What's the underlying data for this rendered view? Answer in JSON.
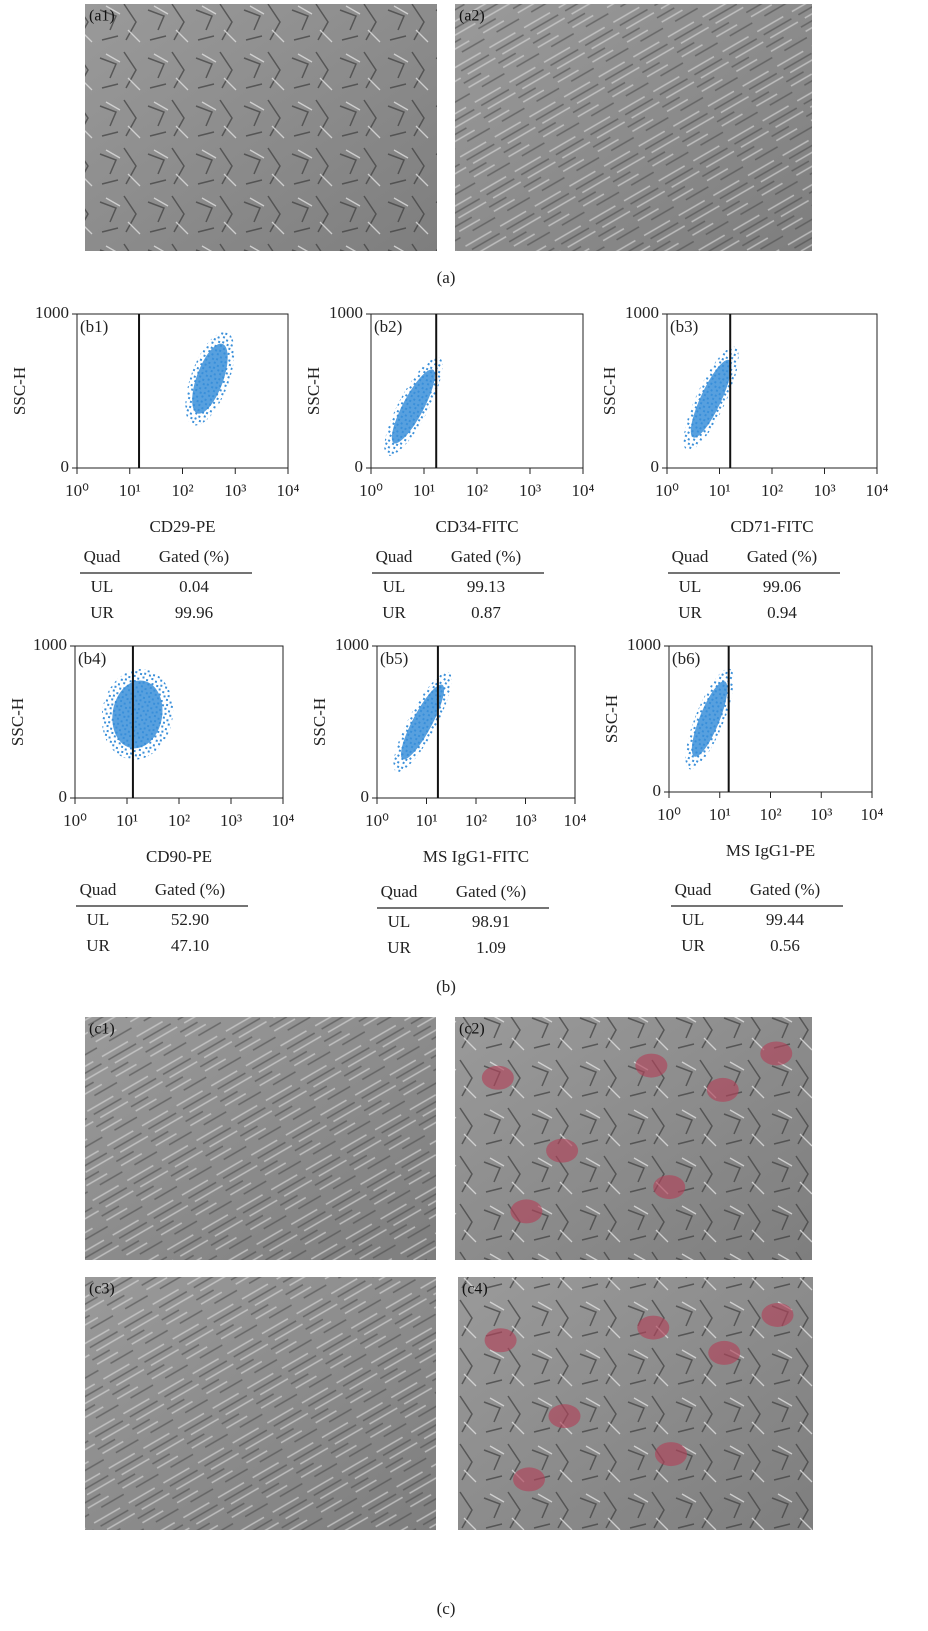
{
  "panel_a": {
    "caption": "(a)",
    "images": [
      {
        "label": "(a1)"
      },
      {
        "label": "(a2)"
      }
    ]
  },
  "panel_b": {
    "caption": "(b)",
    "plots": [
      {
        "label": "(b1)",
        "y_label": "SSC-H",
        "x_label": "CD29-PE",
        "log_x": true,
        "xlim": [
          1,
          10000
        ],
        "ylim": [
          0,
          1000
        ],
        "xticks": [
          {
            "value": 1,
            "label": "10⁰"
          },
          {
            "value": 10,
            "label": "10¹"
          },
          {
            "value": 100,
            "label": "10²"
          },
          {
            "value": 1000,
            "label": "10³"
          },
          {
            "value": 10000,
            "label": "10⁴"
          }
        ],
        "yticks": [
          0,
          1000
        ],
        "gate_x": 15,
        "color": "#3a8fd9",
        "table": {
          "header": [
            "Quad",
            "Gated (%)"
          ],
          "rows": [
            [
              "UL",
              "0.04"
            ],
            [
              "UR",
              "99.96"
            ]
          ]
        }
      },
      {
        "label": "(b2)",
        "y_label": "SSC-H",
        "x_label": "CD34-FITC",
        "log_x": true,
        "xlim": [
          1,
          10000
        ],
        "ylim": [
          0,
          1000
        ],
        "xticks": [
          {
            "value": 1,
            "label": "10⁰"
          },
          {
            "value": 10,
            "label": "10¹"
          },
          {
            "value": 100,
            "label": "10²"
          },
          {
            "value": 1000,
            "label": "10³"
          },
          {
            "value": 10000,
            "label": "10⁴"
          }
        ],
        "yticks": [
          0,
          1000
        ],
        "gate_x": 17,
        "color": "#3a8fd9",
        "table": {
          "header": [
            "Quad",
            "Gated (%)"
          ],
          "rows": [
            [
              "UL",
              "99.13"
            ],
            [
              "UR",
              "0.87"
            ]
          ]
        }
      },
      {
        "label": "(b3)",
        "y_label": "SSC-H",
        "x_label": "CD71-FITC",
        "log_x": true,
        "xlim": [
          1,
          10000
        ],
        "ylim": [
          0,
          1000
        ],
        "xticks": [
          {
            "value": 1,
            "label": "10⁰"
          },
          {
            "value": 10,
            "label": "10¹"
          },
          {
            "value": 100,
            "label": "10²"
          },
          {
            "value": 1000,
            "label": "10³"
          },
          {
            "value": 10000,
            "label": "10⁴"
          }
        ],
        "yticks": [
          0,
          1000
        ],
        "gate_x": 16,
        "color": "#3a8fd9",
        "table": {
          "header": [
            "Quad",
            "Gated (%)"
          ],
          "rows": [
            [
              "UL",
              "99.06"
            ],
            [
              "UR",
              "0.94"
            ]
          ]
        }
      },
      {
        "label": "(b4)",
        "y_label": "SSC-H",
        "x_label": "CD90-PE",
        "log_x": true,
        "xlim": [
          1,
          10000
        ],
        "ylim": [
          0,
          1000
        ],
        "xticks": [
          {
            "value": 1,
            "label": "10⁰"
          },
          {
            "value": 10,
            "label": "10¹"
          },
          {
            "value": 100,
            "label": "10²"
          },
          {
            "value": 1000,
            "label": "10³"
          },
          {
            "value": 10000,
            "label": "10⁴"
          }
        ],
        "yticks": [
          0,
          1000
        ],
        "gate_x": 13,
        "color": "#3a8fd9",
        "table": {
          "header": [
            "Quad",
            "Gated (%)"
          ],
          "rows": [
            [
              "UL",
              "52.90"
            ],
            [
              "UR",
              "47.10"
            ]
          ]
        }
      },
      {
        "label": "(b5)",
        "y_label": "SSC-H",
        "x_label": "MS IgG1-FITC",
        "log_x": true,
        "xlim": [
          1,
          10000
        ],
        "ylim": [
          0,
          1000
        ],
        "xticks": [
          {
            "value": 1,
            "label": "10⁰"
          },
          {
            "value": 10,
            "label": "10¹"
          },
          {
            "value": 100,
            "label": "10²"
          },
          {
            "value": 1000,
            "label": "10³"
          },
          {
            "value": 10000,
            "label": "10⁴"
          }
        ],
        "yticks": [
          0,
          1000
        ],
        "gate_x": 17,
        "color": "#3a8fd9",
        "table": {
          "header": [
            "Quad",
            "Gated (%)"
          ],
          "rows": [
            [
              "UL",
              "98.91"
            ],
            [
              "UR",
              "1.09"
            ]
          ]
        }
      },
      {
        "label": "(b6)",
        "y_label": "SSC-H",
        "x_label": "MS IgG1-PE",
        "log_x": true,
        "xlim": [
          1,
          10000
        ],
        "ylim": [
          0,
          1000
        ],
        "xticks": [
          {
            "value": 1,
            "label": "10⁰"
          },
          {
            "value": 10,
            "label": "10¹"
          },
          {
            "value": 100,
            "label": "10²"
          },
          {
            "value": 1000,
            "label": "10³"
          },
          {
            "value": 10000,
            "label": "10⁴"
          }
        ],
        "yticks": [
          0,
          1000
        ],
        "gate_x": 15,
        "color": "#3a8fd9",
        "table": {
          "header": [
            "Quad",
            "Gated (%)"
          ],
          "rows": [
            [
              "UL",
              "99.44"
            ],
            [
              "UR",
              "0.56"
            ]
          ]
        }
      }
    ]
  },
  "panel_c": {
    "caption": "(c)",
    "images": [
      {
        "label": "(c1)"
      },
      {
        "label": "(c2)"
      },
      {
        "label": "(c3)"
      },
      {
        "label": "(c4)"
      }
    ]
  }
}
